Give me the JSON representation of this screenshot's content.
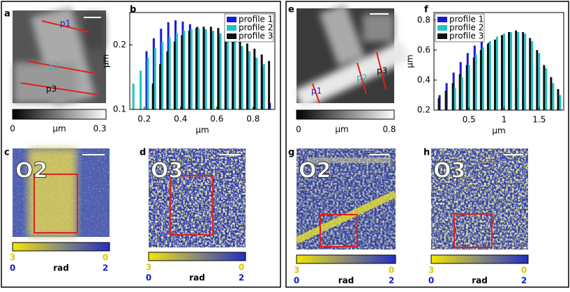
{
  "chart_data": [
    {
      "type": "bar",
      "xlabel": "µm",
      "ylabel": "µm",
      "xlim": [
        0.12,
        0.92
      ],
      "ylim": [
        0.1,
        0.25
      ],
      "xticks": [
        0.2,
        0.4,
        0.6,
        0.8
      ],
      "yticks": [
        0.1,
        0.2
      ],
      "legend": "upper right",
      "series": [
        {
          "name": "profile 1",
          "color": "#1a1ad6",
          "x": [
            0.22,
            0.26,
            0.3,
            0.34,
            0.38,
            0.42,
            0.46,
            0.5,
            0.54,
            0.58,
            0.62,
            0.66,
            0.7,
            0.74,
            0.78,
            0.82,
            0.86,
            0.9
          ],
          "values": [
            0.19,
            0.21,
            0.225,
            0.235,
            0.238,
            0.236,
            0.232,
            0.228,
            0.224,
            0.22,
            0.215,
            0.21,
            0.205,
            0.198,
            0.19,
            0.18,
            0.165,
            0.11
          ]
        },
        {
          "name": "profile 2",
          "color": "#22c4c4",
          "x": [
            0.14,
            0.18,
            0.22,
            0.26,
            0.3,
            0.34,
            0.38,
            0.42,
            0.46,
            0.5,
            0.54,
            0.58,
            0.62,
            0.66,
            0.7,
            0.74,
            0.78,
            0.82,
            0.86
          ],
          "values": [
            0.14,
            0.16,
            0.18,
            0.195,
            0.205,
            0.212,
            0.218,
            0.222,
            0.224,
            0.225,
            0.224,
            0.222,
            0.218,
            0.212,
            0.205,
            0.198,
            0.19,
            0.18,
            0.17
          ]
        },
        {
          "name": "profile 3",
          "color": "#111111",
          "x": [
            0.24,
            0.28,
            0.32,
            0.36,
            0.4,
            0.44,
            0.48,
            0.52,
            0.56,
            0.6,
            0.64,
            0.68,
            0.72,
            0.76,
            0.8,
            0.84,
            0.88
          ],
          "values": [
            0.14,
            0.17,
            0.19,
            0.205,
            0.215,
            0.222,
            0.226,
            0.228,
            0.228,
            0.226,
            0.222,
            0.216,
            0.21,
            0.202,
            0.194,
            0.185,
            0.175
          ]
        }
      ]
    },
    {
      "type": "bar",
      "xlabel": "µm",
      "ylabel": "µm",
      "xlim": [
        0,
        1.85
      ],
      "ylim": [
        0.2,
        0.85
      ],
      "xticks": [
        0.5,
        1,
        1.5
      ],
      "yticks": [
        0.2,
        0.4,
        0.6,
        0.8
      ],
      "legend": "upper left",
      "series": [
        {
          "name": "profile 1",
          "color": "#1a1ad6",
          "x": [
            0.1,
            0.2,
            0.3,
            0.4,
            0.5,
            0.6,
            0.7,
            0.8,
            0.9,
            1.0,
            1.1,
            1.2,
            1.3
          ],
          "values": [
            0.3,
            0.38,
            0.45,
            0.52,
            0.58,
            0.63,
            0.66,
            0.65,
            0.62,
            0.55,
            0.45,
            0.35,
            0.25
          ]
        },
        {
          "name": "profile 2",
          "color": "#22c4c4",
          "x": [
            0.3,
            0.4,
            0.5,
            0.6,
            0.7,
            0.8,
            0.9,
            1.0,
            1.1,
            1.2,
            1.3,
            1.4,
            1.5,
            1.6,
            1.7,
            1.8
          ],
          "values": [
            0.35,
            0.42,
            0.5,
            0.57,
            0.62,
            0.66,
            0.69,
            0.71,
            0.72,
            0.72,
            0.71,
            0.66,
            0.58,
            0.48,
            0.38,
            0.3
          ]
        },
        {
          "name": "profile 3",
          "color": "#111111",
          "x": [
            0.05,
            0.15,
            0.25,
            0.35,
            0.45,
            0.55,
            0.65,
            0.75,
            0.85,
            0.95,
            1.05,
            1.15,
            1.25,
            1.35,
            1.45,
            1.55,
            1.65,
            1.75
          ],
          "values": [
            0.28,
            0.33,
            0.38,
            0.44,
            0.5,
            0.55,
            0.6,
            0.64,
            0.67,
            0.7,
            0.72,
            0.73,
            0.72,
            0.68,
            0.6,
            0.5,
            0.42,
            0.34
          ]
        }
      ]
    }
  ],
  "panels": [
    {
      "letter": "a",
      "profiles": [
        "p1",
        "p2",
        "p3"
      ],
      "colorbar": [
        "0",
        "µm",
        "0.3"
      ]
    },
    {
      "letter": "b"
    },
    {
      "letter": "c",
      "overlay": "O2",
      "colorbar": [
        "3",
        "0",
        "0",
        "rad",
        "2"
      ]
    },
    {
      "letter": "d",
      "overlay": "O3",
      "colorbar": [
        "3",
        "0",
        "0",
        "rad",
        "2"
      ]
    },
    {
      "letter": "e",
      "profiles": [
        "p1",
        "p2",
        "p3"
      ],
      "colorbar": [
        "0",
        "µm",
        "0.8"
      ]
    },
    {
      "letter": "f"
    },
    {
      "letter": "g",
      "overlay": "O2",
      "colorbar": [
        "3",
        "0",
        "0",
        "rad",
        "2"
      ]
    },
    {
      "letter": "h",
      "overlay": "O3",
      "colorbar": [
        "3",
        "0",
        "0",
        "rad",
        "2"
      ]
    }
  ]
}
